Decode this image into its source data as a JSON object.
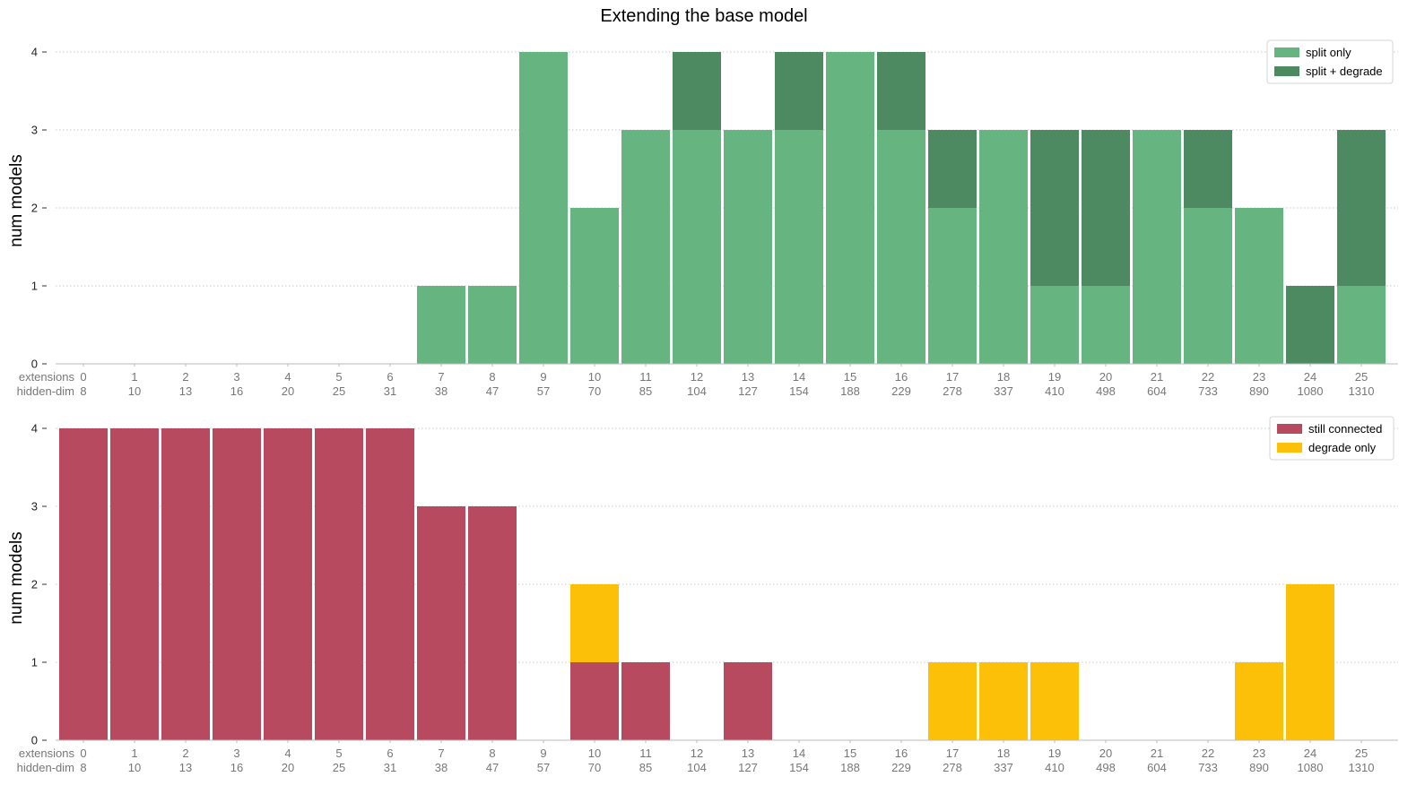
{
  "chart_data": [
    {
      "type": "bar",
      "stacked": true,
      "title": "Extending the base model",
      "ylabel": "num models",
      "ylim": [
        0,
        4
      ],
      "yticks": [
        0,
        1,
        2,
        3,
        4
      ],
      "grid": "horizontal dotted",
      "legend_position": "top-right",
      "x_row_labels": [
        "extensions",
        "hidden-dim"
      ],
      "categories": [
        "0",
        "1",
        "2",
        "3",
        "4",
        "5",
        "6",
        "7",
        "8",
        "9",
        "10",
        "11",
        "12",
        "13",
        "14",
        "15",
        "16",
        "17",
        "18",
        "19",
        "20",
        "21",
        "22",
        "23",
        "24",
        "25"
      ],
      "hidden_dim": [
        "8",
        "10",
        "13",
        "16",
        "20",
        "25",
        "31",
        "38",
        "47",
        "57",
        "70",
        "85",
        "104",
        "127",
        "154",
        "188",
        "229",
        "278",
        "337",
        "410",
        "498",
        "604",
        "733",
        "890",
        "1080",
        "1310"
      ],
      "series": [
        {
          "name": "split only",
          "color": "#66b581",
          "values": [
            0,
            0,
            0,
            0,
            0,
            0,
            0,
            1,
            1,
            4,
            2,
            3,
            3,
            3,
            3,
            4,
            3,
            2,
            3,
            1,
            1,
            3,
            2,
            2,
            0,
            1
          ]
        },
        {
          "name": "split + degrade",
          "color": "#4e8a61",
          "values": [
            0,
            0,
            0,
            0,
            0,
            0,
            0,
            0,
            0,
            0,
            0,
            0,
            1,
            0,
            1,
            0,
            1,
            1,
            0,
            2,
            2,
            0,
            1,
            0,
            1,
            2
          ]
        }
      ]
    },
    {
      "type": "bar",
      "stacked": true,
      "ylabel": "num models",
      "ylim": [
        0,
        4
      ],
      "yticks": [
        0,
        1,
        2,
        3,
        4
      ],
      "grid": "horizontal dotted",
      "legend_position": "top-right",
      "x_row_labels": [
        "extensions",
        "hidden-dim"
      ],
      "categories": [
        "0",
        "1",
        "2",
        "3",
        "4",
        "5",
        "6",
        "7",
        "8",
        "9",
        "10",
        "11",
        "12",
        "13",
        "14",
        "15",
        "16",
        "17",
        "18",
        "19",
        "20",
        "21",
        "22",
        "23",
        "24",
        "25"
      ],
      "hidden_dim": [
        "8",
        "10",
        "13",
        "16",
        "20",
        "25",
        "31",
        "38",
        "47",
        "57",
        "70",
        "85",
        "104",
        "127",
        "154",
        "188",
        "229",
        "278",
        "337",
        "410",
        "498",
        "604",
        "733",
        "890",
        "1080",
        "1310"
      ],
      "series": [
        {
          "name": "still connected",
          "color": "#b84a60",
          "values": [
            4,
            4,
            4,
            4,
            4,
            4,
            4,
            3,
            3,
            0,
            1,
            1,
            0,
            1,
            0,
            0,
            0,
            0,
            0,
            0,
            0,
            0,
            0,
            0,
            0,
            0
          ]
        },
        {
          "name": "degrade only",
          "color": "#fcc008",
          "values": [
            0,
            0,
            0,
            0,
            0,
            0,
            0,
            0,
            0,
            0,
            1,
            0,
            0,
            0,
            0,
            0,
            0,
            1,
            1,
            1,
            0,
            0,
            0,
            1,
            2,
            0
          ]
        }
      ]
    }
  ]
}
